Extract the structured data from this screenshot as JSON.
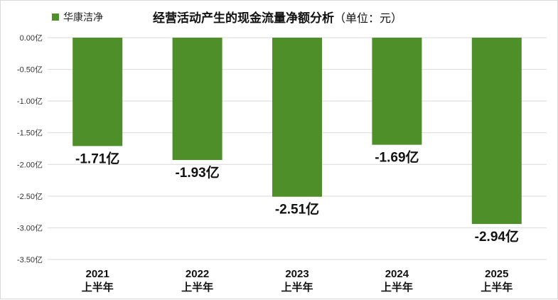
{
  "chart_data": {
    "type": "bar",
    "title": "经营活动产生的现金流量净额分析",
    "subtitle": "（单位：元）",
    "series": [
      {
        "name": "华康洁净",
        "values": [
          -1.71,
          -1.93,
          -2.51,
          -1.69,
          -2.94
        ],
        "color": "#4e8f2a"
      }
    ],
    "categories": [
      [
        "2021",
        "上半年"
      ],
      [
        "2022",
        "上半年"
      ],
      [
        "2023",
        "上半年"
      ],
      [
        "2024",
        "上半年"
      ],
      [
        "2025",
        "上半年"
      ]
    ],
    "data_labels": [
      "-1.71亿",
      "-1.93亿",
      "-2.51亿",
      "-1.69亿",
      "-2.94亿"
    ],
    "y_ticks": [
      "0.00亿",
      "-0.50亿",
      "-1.00亿",
      "-1.50亿",
      "-2.00亿",
      "-2.50亿",
      "-3.00亿",
      "-3.50亿"
    ],
    "ylim": [
      -3.5,
      0
    ],
    "grid": true,
    "legend_position": "top-left"
  }
}
